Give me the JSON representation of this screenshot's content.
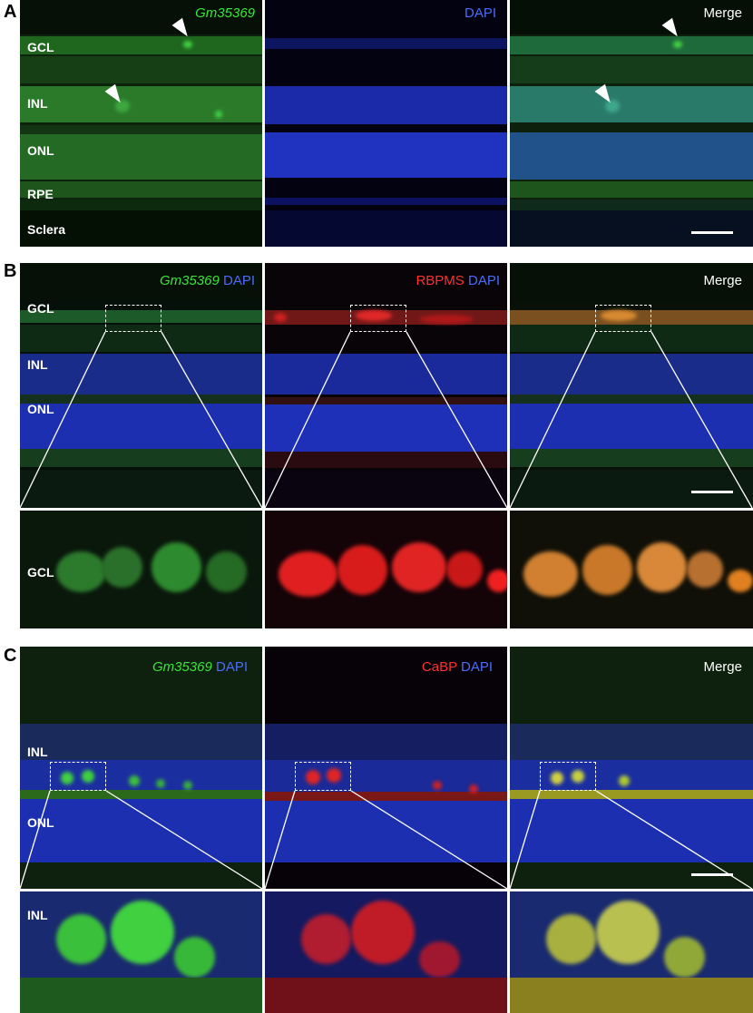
{
  "panels": {
    "A": {
      "letter": "A",
      "tiles": [
        {
          "label_italic": "Gm35369",
          "label_plain": "",
          "italic_color": "#39e639",
          "plain_color": "#4c6cff"
        },
        {
          "label_italic": "",
          "label_plain": "DAPI",
          "italic_color": "#39e639",
          "plain_color": "#4c6cff"
        },
        {
          "label_italic": "",
          "label_plain": "Merge",
          "italic_color": "#39e639",
          "plain_color": "#ffffff"
        }
      ],
      "layers": [
        "GCL",
        "INL",
        "ONL",
        "RPE",
        "Sclera"
      ]
    },
    "B": {
      "letter": "B",
      "tiles": [
        {
          "label_italic": "Gm35369",
          "label_plain": "DAPI",
          "italic_color": "#39e639",
          "plain_color": "#4c6cff"
        },
        {
          "label_italic": "",
          "label_red": "RBPMS",
          "label_plain": "DAPI",
          "red_color": "#ff3030",
          "plain_color": "#4c6cff"
        },
        {
          "label_italic": "",
          "label_plain": "Merge",
          "plain_color": "#ffffff"
        }
      ],
      "layers": [
        "GCL",
        "INL",
        "ONL"
      ],
      "zoom_layer": "GCL"
    },
    "C": {
      "letter": "C",
      "tiles": [
        {
          "label_italic": "Gm35369",
          "label_plain": "DAPI",
          "italic_color": "#39e639",
          "plain_color": "#4c6cff"
        },
        {
          "label_italic": "",
          "label_red": "CaBP",
          "label_plain": "DAPI",
          "red_color": "#ff3030",
          "plain_color": "#4c6cff"
        },
        {
          "label_italic": "",
          "label_plain": "Merge",
          "plain_color": "#ffffff"
        }
      ],
      "layers": [
        "INL",
        "ONL"
      ],
      "zoom_layer": "INL"
    }
  },
  "colors": {
    "green": "#2e8f2e",
    "blue": "#1f2fbf",
    "red": "#d01818",
    "merge_yellow": "#c8c020",
    "merge_orange": "#d08030"
  }
}
